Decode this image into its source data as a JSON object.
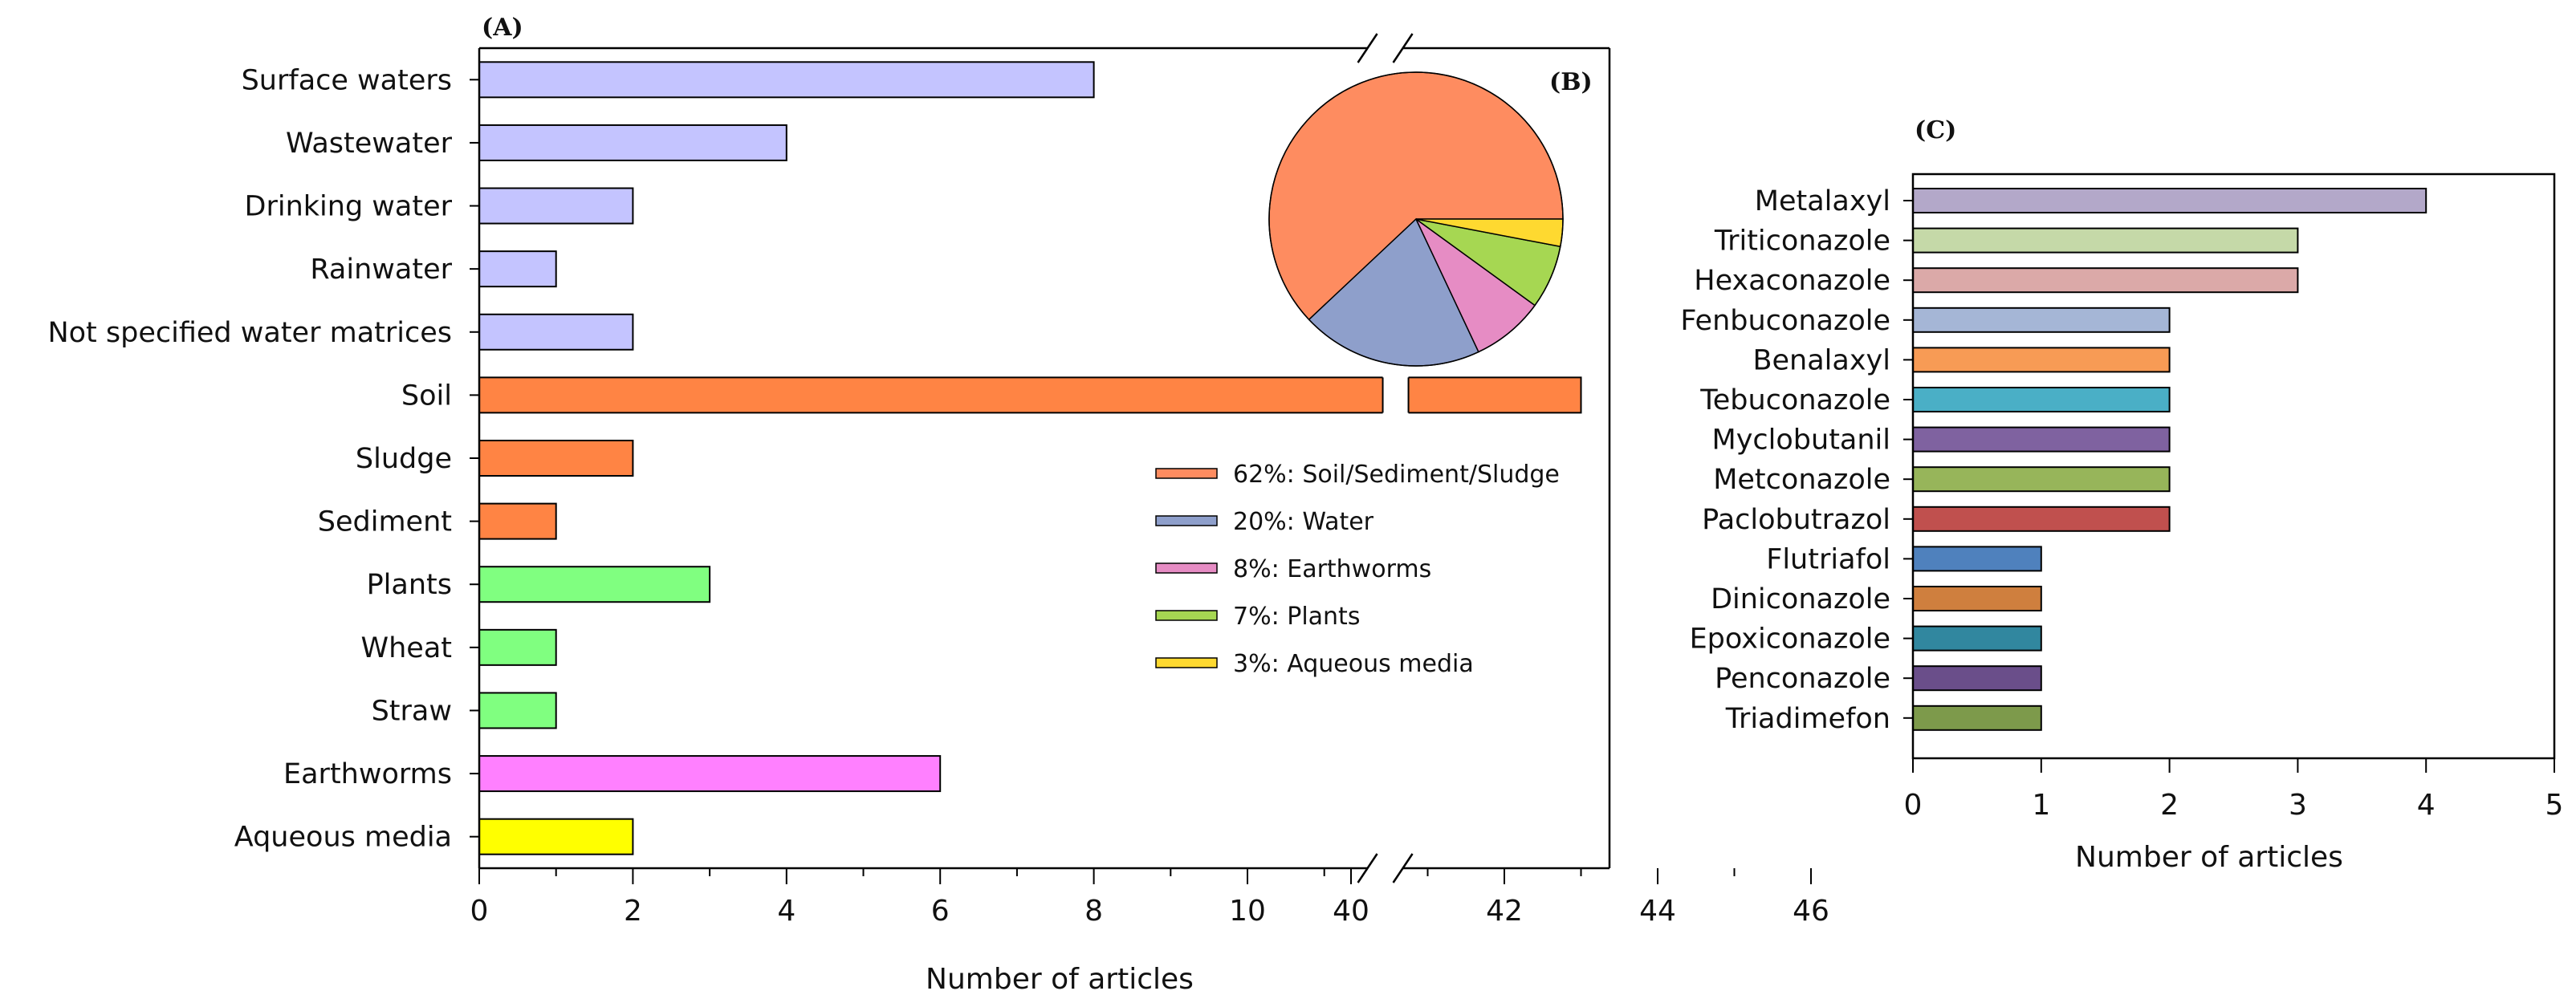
{
  "chart_data": [
    {
      "type": "bar",
      "orientation": "horizontal",
      "panel_label": "(A)",
      "categories": [
        "Surface waters",
        "Wastewater",
        "Drinking water ",
        "Rainwater",
        "Not specified water matrices",
        "Soil",
        "Sludge",
        "Sediment",
        "Plants",
        "Wheat",
        "Straw",
        "Earthworms",
        "Aqueous media"
      ],
      "values": [
        8,
        4,
        2,
        1,
        2,
        43,
        2,
        1,
        3,
        1,
        1,
        6,
        2
      ],
      "colors": [
        "#c4c4ff",
        "#c4c4ff",
        "#c4c4ff",
        "#c4c4ff",
        "#c4c4ff",
        "#ff8444",
        "#ff8444",
        "#ff8444",
        "#80ff80",
        "#80ff80",
        "#80ff80",
        "#ff80ff",
        "#ffff00"
      ],
      "xlabel": "Number of articles",
      "axis_break": {
        "from": 11.5,
        "to": 39.3
      },
      "xticks": [
        0,
        2,
        4,
        6,
        8,
        10,
        40,
        42,
        44,
        46
      ],
      "grid": false
    },
    {
      "type": "pie",
      "panel_label": "(B)",
      "labels": [
        "62%: Soil/Sediment/Sludge",
        "20%: Water",
        "8%: Earthworms",
        "7%: Plants",
        "3%: Aqueous media"
      ],
      "values": [
        62,
        20,
        8,
        7,
        3
      ],
      "colors": [
        "#fe8c60",
        "#8e9fcb",
        "#e68cc4",
        "#a6d752",
        "#fed930"
      ],
      "legend_position": "bottom-right"
    },
    {
      "type": "bar",
      "orientation": "horizontal",
      "panel_label": "(C)",
      "categories": [
        "Metalaxyl",
        "Triticonazole",
        "Hexaconazole",
        "Fenbuconazole",
        "Benalaxyl",
        "Tebuconazole",
        "Myclobutanil",
        "Metconazole",
        "Paclobutrazol",
        "Flutriafol",
        "Diniconazole",
        "Epoxiconazole",
        "Penconazole",
        "Triadimefon"
      ],
      "values": [
        4,
        3,
        3,
        2,
        2,
        2,
        2,
        2,
        2,
        1,
        1,
        1,
        1,
        1
      ],
      "colors": [
        "#b3a8c9",
        "#c5d9a8",
        "#dba9a8",
        "#a5b6d6",
        "#f79b55",
        "#4aafc6",
        "#7f62a0",
        "#97b55a",
        "#c0504e",
        "#4f81bd",
        "#cf7f3e",
        "#31879f",
        "#6a4e8a",
        "#7d9a4b"
      ],
      "xlabel": "Number of articles",
      "xlim": [
        0,
        5
      ],
      "xticks": [
        0,
        1,
        2,
        3,
        4,
        5
      ],
      "grid": false
    }
  ]
}
